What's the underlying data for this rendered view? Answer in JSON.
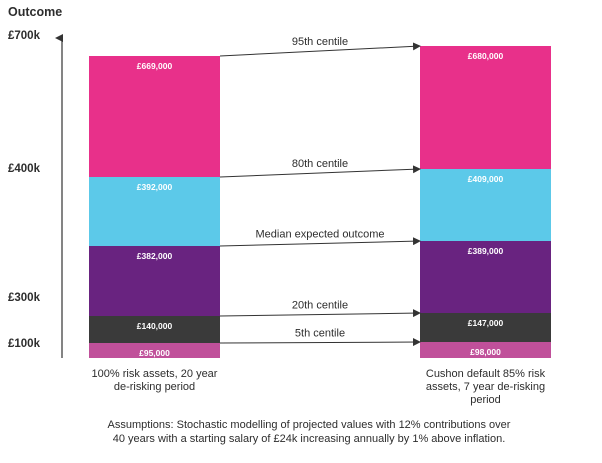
{
  "chart_data": {
    "type": "bar",
    "title": "",
    "ylabel": "Outcome",
    "xlabel": "",
    "y_tick_labels": [
      "£700k",
      "£400k",
      "£300k",
      "£100k"
    ],
    "categories": [
      [
        "100% risk assets, 20 year",
        "de-risking period"
      ],
      [
        "Cushon default 85% risk",
        "assets, 7 year de-risking",
        "period"
      ]
    ],
    "series": [
      {
        "name": "5th centile",
        "values": [
          95000,
          98000
        ],
        "labels": [
          "£95,000",
          "£98,000"
        ],
        "color": "#c0509a"
      },
      {
        "name": "20th centile",
        "values": [
          140000,
          147000
        ],
        "labels": [
          "£140,000",
          "£147,000"
        ],
        "color": "#3a3a3a"
      },
      {
        "name": "Median expected outcome",
        "values": [
          382000,
          389000
        ],
        "labels": [
          "£382,000",
          "£389,000"
        ],
        "color": "#692380"
      },
      {
        "name": "80th centile",
        "values": [
          392000,
          409000
        ],
        "labels": [
          "£392,000",
          "£409,000"
        ],
        "color": "#5cc9e9"
      },
      {
        "name": "95th centile",
        "values": [
          669000,
          680000
        ],
        "labels": [
          "£669,000",
          "£680,000"
        ],
        "color": "#e8308a"
      }
    ],
    "grid": false,
    "legend": "none"
  },
  "footnote": [
    "Assumptions: Stochastic modelling of projected values with 12% contributions over",
    "40 years with a starting salary of £24k increasing annually by 1% above inflation."
  ]
}
